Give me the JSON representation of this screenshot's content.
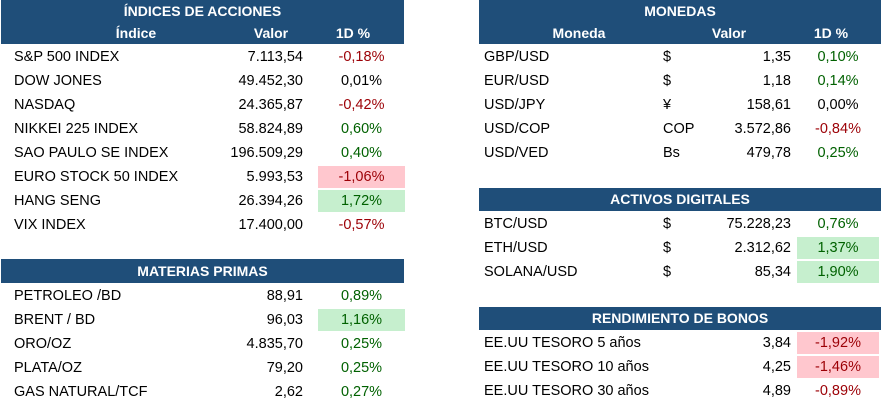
{
  "indices": {
    "title": "ÍNDICES DE ACCIONES",
    "headers": {
      "name": "Índice",
      "value": "Valor",
      "change": "1D %"
    },
    "rows": [
      {
        "name": "S&P 500 INDEX",
        "value": "7.113,54",
        "change": "-0,18%",
        "status": "neg",
        "highlight": false
      },
      {
        "name": "DOW JONES",
        "value": "49.452,30",
        "change": "0,01%",
        "status": "neu",
        "highlight": false
      },
      {
        "name": "NASDAQ",
        "value": "24.365,87",
        "change": "-0,42%",
        "status": "neg",
        "highlight": false
      },
      {
        "name": "NIKKEI 225 INDEX",
        "value": "58.824,89",
        "change": "0,60%",
        "status": "pos",
        "highlight": false
      },
      {
        "name": "SAO PAULO SE INDEX",
        "value": "196.509,29",
        "change": "0,40%",
        "status": "pos",
        "highlight": false
      },
      {
        "name": "EURO STOCK 50 INDEX",
        "value": "5.993,53",
        "change": "-1,06%",
        "status": "neg",
        "highlight": true
      },
      {
        "name": "HANG SENG",
        "value": "26.394,26",
        "change": "1,72%",
        "status": "pos",
        "highlight": true
      },
      {
        "name": "VIX INDEX",
        "value": "17.400,00",
        "change": "-0,57%",
        "status": "neg",
        "highlight": false
      }
    ]
  },
  "commodities": {
    "title": "MATERIAS PRIMAS",
    "rows": [
      {
        "name": "PETROLEO /BD",
        "value": "88,91",
        "change": "0,89%",
        "status": "pos",
        "highlight": false
      },
      {
        "name": "BRENT / BD",
        "value": "96,03",
        "change": "1,16%",
        "status": "pos",
        "highlight": true
      },
      {
        "name": "ORO/OZ",
        "value": "4.835,70",
        "change": "0,25%",
        "status": "pos",
        "highlight": false
      },
      {
        "name": "PLATA/OZ",
        "value": "79,20",
        "change": "0,25%",
        "status": "pos",
        "highlight": false
      },
      {
        "name": "GAS NATURAL/TCF",
        "value": "2,62",
        "change": "0,27%",
        "status": "pos",
        "highlight": false
      }
    ]
  },
  "currencies": {
    "title": "MONEDAS",
    "headers": {
      "name": "Moneda",
      "value": "Valor",
      "change": "1D %"
    },
    "rows": [
      {
        "name": "GBP/USD",
        "symbol": "$",
        "value": "1,35",
        "change": "0,10%",
        "status": "pos",
        "highlight": false
      },
      {
        "name": "EUR/USD",
        "symbol": "$",
        "value": "1,18",
        "change": "0,14%",
        "status": "pos",
        "highlight": false
      },
      {
        "name": "USD/JPY",
        "symbol": "¥",
        "value": "158,61",
        "change": "0,00%",
        "status": "neu",
        "highlight": false
      },
      {
        "name": "USD/COP",
        "symbol": "COP",
        "value": "3.572,86",
        "change": "-0,84%",
        "status": "neg",
        "highlight": false
      },
      {
        "name": "USD/VED",
        "symbol": "Bs",
        "value": "479,78",
        "change": "0,25%",
        "status": "pos",
        "highlight": false
      }
    ]
  },
  "digital": {
    "title": "ACTIVOS DIGITALES",
    "rows": [
      {
        "name": "BTC/USD",
        "symbol": "$",
        "value": "75.228,23",
        "change": "0,76%",
        "status": "pos",
        "highlight": false
      },
      {
        "name": "ETH/USD",
        "symbol": "$",
        "value": "2.312,62",
        "change": "1,37%",
        "status": "pos",
        "highlight": true
      },
      {
        "name": "SOLANA/USD",
        "symbol": "$",
        "value": "85,34",
        "change": "1,90%",
        "status": "pos",
        "highlight": true
      }
    ]
  },
  "bonds": {
    "title": "RENDIMIENTO DE BONOS",
    "rows": [
      {
        "name": "EE.UU TESORO 5 años",
        "value": "3,84",
        "change": "-1,92%",
        "status": "neg",
        "highlight": true
      },
      {
        "name": "EE.UU TESORO 10 años",
        "value": "4,25",
        "change": "-1,46%",
        "status": "neg",
        "highlight": true
      },
      {
        "name": "EE.UU TESORO 30 años",
        "value": "4,89",
        "change": "-0,89%",
        "status": "neg",
        "highlight": false
      }
    ]
  }
}
